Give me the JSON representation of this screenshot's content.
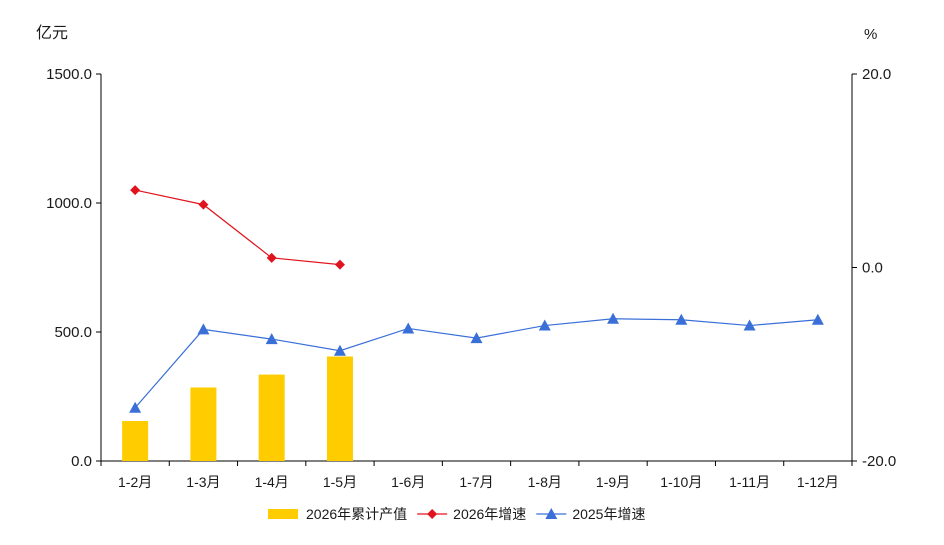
{
  "chart_data": {
    "type": "bar+line",
    "categories": [
      "1-2月",
      "1-3月",
      "1-4月",
      "1-5月",
      "1-6月",
      "1-7月",
      "1-8月",
      "1-9月",
      "1-10月",
      "1-11月",
      "1-12月"
    ],
    "left_axis": {
      "unit": "亿元",
      "ylim": [
        0,
        1500
      ],
      "ticks": [
        "0.0",
        "500.0",
        "1000.0",
        "1500.0"
      ]
    },
    "right_axis": {
      "unit": "%",
      "ylim": [
        -20,
        20
      ],
      "ticks": [
        "-20.0",
        "0.0",
        "20.0"
      ]
    },
    "series": [
      {
        "name": "2026年累计产值",
        "type": "bar",
        "axis": "left",
        "color": "#ffcc00",
        "values": [
          155,
          285,
          335,
          405,
          null,
          null,
          null,
          null,
          null,
          null,
          null
        ]
      },
      {
        "name": "2026年增速",
        "type": "line",
        "axis": "right",
        "color": "#e0141e",
        "marker": "diamond",
        "values": [
          8.0,
          6.5,
          1.0,
          0.3,
          null,
          null,
          null,
          null,
          null,
          null,
          null
        ]
      },
      {
        "name": "2025年增速",
        "type": "line",
        "axis": "right",
        "color": "#3a6fd8",
        "marker": "triangle",
        "values": [
          -14.5,
          -6.4,
          -7.4,
          -8.6,
          -6.3,
          -7.3,
          -6.0,
          -5.3,
          -5.4,
          -6.0,
          -5.4
        ]
      }
    ],
    "legend": "bottom",
    "grid": false
  }
}
